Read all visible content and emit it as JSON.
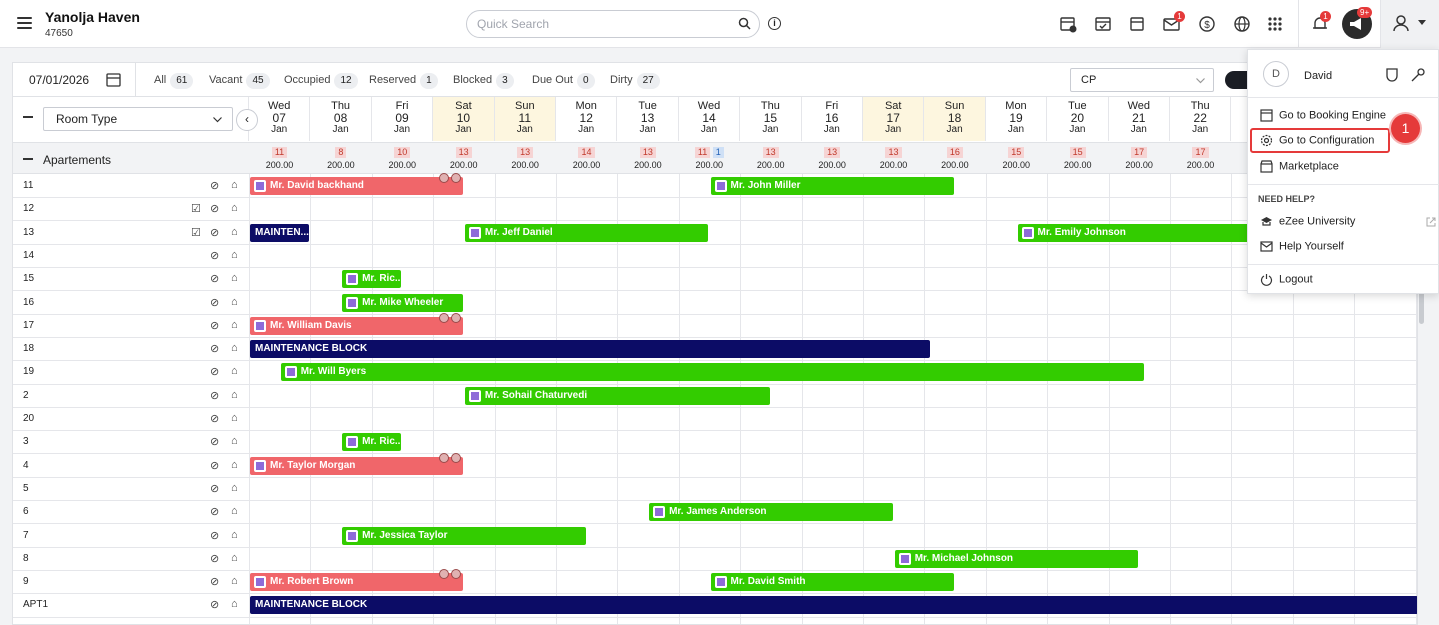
{
  "header": {
    "hotel_name": "Yanolja Haven",
    "hotel_code": "47650",
    "search_placeholder": "Quick Search",
    "notif_badge": "1",
    "mail_badge": "1",
    "announce_badge": "9+"
  },
  "toolbar": {
    "date": "07/01/2026",
    "filters": [
      {
        "label": "All",
        "count": "61"
      },
      {
        "label": "Vacant",
        "count": "45"
      },
      {
        "label": "Occupied",
        "count": "12"
      },
      {
        "label": "Reserved",
        "count": "1"
      },
      {
        "label": "Blocked",
        "count": "3"
      },
      {
        "label": "Due Out",
        "count": "0"
      },
      {
        "label": "Dirty",
        "count": "27"
      }
    ],
    "rate_plan": "CP"
  },
  "grid": {
    "room_type_label": "Room Type",
    "section_name": "Apartements",
    "days": [
      {
        "dow": "Wed",
        "day": "07",
        "mon": "Jan",
        "avail": "11",
        "rate": "200.00"
      },
      {
        "dow": "Thu",
        "day": "08",
        "mon": "Jan",
        "avail": "8",
        "rate": "200.00"
      },
      {
        "dow": "Fri",
        "day": "09",
        "mon": "Jan",
        "avail": "10",
        "rate": "200.00"
      },
      {
        "dow": "Sat",
        "day": "10",
        "mon": "Jan",
        "avail": "13",
        "rate": "200.00"
      },
      {
        "dow": "Sun",
        "day": "11",
        "mon": "Jan",
        "avail": "13",
        "rate": "200.00"
      },
      {
        "dow": "Mon",
        "day": "12",
        "mon": "Jan",
        "avail": "14",
        "rate": "200.00"
      },
      {
        "dow": "Tue",
        "day": "13",
        "mon": "Jan",
        "avail": "13",
        "rate": "200.00"
      },
      {
        "dow": "Wed",
        "day": "14",
        "mon": "Jan",
        "avail": "11",
        "avail2": "1",
        "rate": "200.00"
      },
      {
        "dow": "Thu",
        "day": "15",
        "mon": "Jan",
        "avail": "13",
        "rate": "200.00"
      },
      {
        "dow": "Fri",
        "day": "16",
        "mon": "Jan",
        "avail": "13",
        "rate": "200.00"
      },
      {
        "dow": "Sat",
        "day": "17",
        "mon": "Jan",
        "avail": "13",
        "rate": "200.00"
      },
      {
        "dow": "Sun",
        "day": "18",
        "mon": "Jan",
        "avail": "16",
        "rate": "200.00"
      },
      {
        "dow": "Mon",
        "day": "19",
        "mon": "Jan",
        "avail": "15",
        "rate": "200.00"
      },
      {
        "dow": "Tue",
        "day": "20",
        "mon": "Jan",
        "avail": "15",
        "rate": "200.00"
      },
      {
        "dow": "Wed",
        "day": "21",
        "mon": "Jan",
        "avail": "17",
        "rate": "200.00"
      },
      {
        "dow": "Thu",
        "day": "22",
        "mon": "Jan",
        "avail": "17",
        "rate": "200.00"
      }
    ],
    "rooms": [
      "11",
      "12",
      "13",
      "14",
      "15",
      "16",
      "17",
      "18",
      "19",
      "2",
      "20",
      "3",
      "4",
      "5",
      "6",
      "7",
      "8",
      "9",
      "APT1"
    ],
    "bookings": [
      {
        "row": 0,
        "start": 0,
        "span": 3.5,
        "type": "red",
        "label": "Mr. David backhand",
        "icon": true
      },
      {
        "row": 0,
        "start": 7.5,
        "span": 4,
        "type": "green",
        "label": "Mr. John Miller",
        "icon": true
      },
      {
        "row": 2,
        "start": 0,
        "span": 1,
        "type": "maint",
        "label": "MAINTEN..."
      },
      {
        "row": 2,
        "start": 3.5,
        "span": 4,
        "type": "green",
        "label": "Mr. Jeff Daniel",
        "icon": true
      },
      {
        "row": 2,
        "start": 12.5,
        "span": 3.8,
        "type": "green",
        "label": "Mr. Emily Johnson",
        "icon": true
      },
      {
        "row": 4,
        "start": 1.5,
        "span": 1,
        "type": "green",
        "label": "Mr. Ric...",
        "icon": true
      },
      {
        "row": 5,
        "start": 1.5,
        "span": 2,
        "type": "green",
        "label": "Mr. Mike Wheeler",
        "icon": true
      },
      {
        "row": 6,
        "start": 0,
        "span": 3.5,
        "type": "red",
        "label": "Mr. William Davis",
        "icon": true
      },
      {
        "row": 7,
        "start": 0,
        "span": 11.1,
        "type": "maint",
        "label": "MAINTENANCE BLOCK"
      },
      {
        "row": 8,
        "start": 0.5,
        "span": 14.1,
        "type": "green",
        "label": "Mr. Will Byers",
        "icon": true
      },
      {
        "row": 9,
        "start": 3.5,
        "span": 5,
        "type": "green",
        "label": "Mr. Sohail Chaturvedi",
        "icon": true
      },
      {
        "row": 11,
        "start": 1.5,
        "span": 1,
        "type": "green",
        "label": "Mr. Ric...",
        "icon": true
      },
      {
        "row": 12,
        "start": 0,
        "span": 3.5,
        "type": "red",
        "label": "Mr. Taylor Morgan",
        "icon": true
      },
      {
        "row": 14,
        "start": 6.5,
        "span": 4,
        "type": "green",
        "label": "Mr. James Anderson",
        "icon": true
      },
      {
        "row": 15,
        "start": 1.5,
        "span": 4,
        "type": "green",
        "label": "Mr. Jessica Taylor",
        "icon": true
      },
      {
        "row": 16,
        "start": 10.5,
        "span": 4,
        "type": "green",
        "label": "Mr. Michael Johnson",
        "icon": true
      },
      {
        "row": 17,
        "start": 0,
        "span": 3.5,
        "type": "red",
        "label": "Mr. Robert Brown",
        "icon": true
      },
      {
        "row": 17,
        "start": 7.5,
        "span": 4,
        "type": "green",
        "label": "Mr. David Smith",
        "icon": true
      },
      {
        "row": 18,
        "start": 0,
        "span": 19.2,
        "type": "maint",
        "label": "MAINTENANCE BLOCK"
      }
    ]
  },
  "user_menu": {
    "avatar_letter": "D",
    "user_name": "David",
    "items": [
      "Go to Booking Engine",
      "Go to Configuration",
      "Marketplace"
    ],
    "help_section": "NEED HELP?",
    "help_items": [
      "eZee University",
      "Help Yourself"
    ],
    "logout": "Logout",
    "step_number": "1"
  },
  "colors": {
    "booking_green": "#33cc00",
    "booking_red": "#f0666a",
    "maintenance": "#0c0c66",
    "highlight": "#e53a3a",
    "weekend": "#fdf6df"
  }
}
